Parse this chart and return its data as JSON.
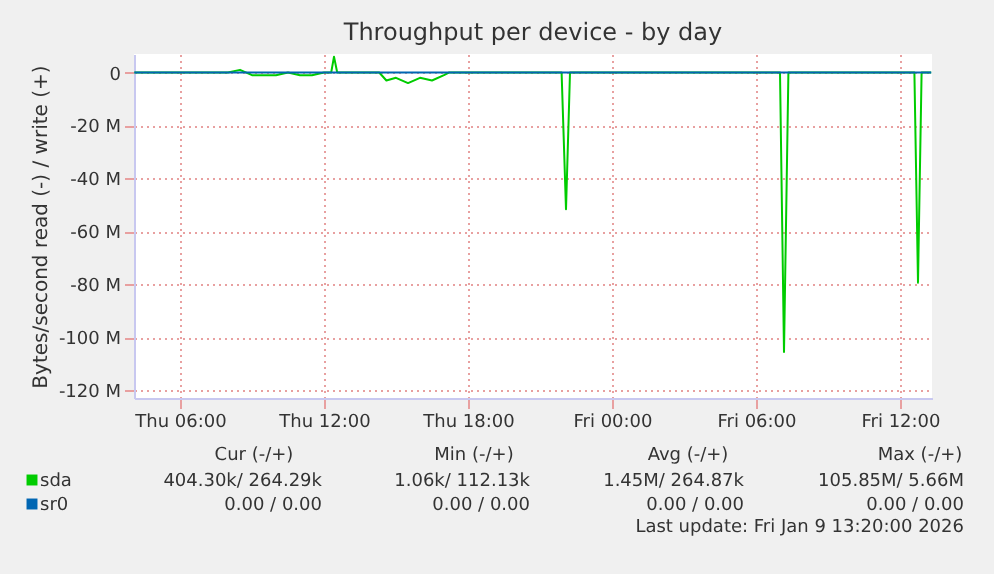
{
  "chart_data": {
    "type": "line",
    "title": "Throughput per device - by day",
    "ylabel": "Bytes/second read (-) / write (+)",
    "x": [
      "2026-01-08T04:06",
      "2026-01-08T06:00",
      "2026-01-08T08:00",
      "2026-01-08T08:30",
      "2026-01-08T09:00",
      "2026-01-08T10:00",
      "2026-01-08T10:30",
      "2026-01-08T11:00",
      "2026-01-08T11:30",
      "2026-01-08T12:00",
      "2026-01-08T12:18",
      "2026-01-08T12:25",
      "2026-01-08T12:33",
      "2026-01-08T13:00",
      "2026-01-08T14:18",
      "2026-01-08T14:36",
      "2026-01-08T15:00",
      "2026-01-08T15:30",
      "2026-01-08T16:00",
      "2026-01-08T16:30",
      "2026-01-08T17:00",
      "2026-01-08T17:12",
      "2026-01-08T20:00",
      "2026-01-08T21:54",
      "2026-01-08T22:05",
      "2026-01-08T22:15",
      "2026-01-09T02:00",
      "2026-01-09T04:00",
      "2026-01-09T07:00",
      "2026-01-09T07:10",
      "2026-01-09T07:21",
      "2026-01-09T10:00",
      "2026-01-09T12:36",
      "2026-01-09T12:45",
      "2026-01-09T12:54",
      "2026-01-09T13:18"
    ],
    "series": [
      {
        "name": "sda",
        "color": "#00cc00",
        "values": [
          0,
          0,
          0,
          1,
          -1,
          -1,
          0,
          -1,
          -1,
          0,
          0,
          6,
          0,
          0,
          0,
          -3,
          -2,
          -4,
          -2,
          -3,
          -1,
          0,
          0,
          0,
          -51.7,
          0,
          0,
          0,
          0,
          -105.6,
          0,
          0,
          0,
          -79.4,
          0,
          0
        ]
      },
      {
        "name": "sr0",
        "color": "#0066b3",
        "values": [
          0,
          0,
          0,
          0,
          0,
          0,
          0,
          0,
          0,
          0,
          0,
          0,
          0,
          0,
          0,
          0,
          0,
          0,
          0,
          0,
          0,
          0,
          0,
          0,
          0,
          0,
          0,
          0,
          0,
          0,
          0,
          0,
          0,
          0,
          0,
          0
        ]
      }
    ],
    "xlim": [
      "2026-01-08T04:05",
      "2026-01-09T13:20"
    ],
    "xticks": [
      {
        "value": "2026-01-08T06:00",
        "label": "Thu 06:00"
      },
      {
        "value": "2026-01-08T12:00",
        "label": "Thu 12:00"
      },
      {
        "value": "2026-01-08T18:00",
        "label": "Thu 18:00"
      },
      {
        "value": "2026-01-09T00:00",
        "label": "Fri 00:00"
      },
      {
        "value": "2026-01-09T06:00",
        "label": "Fri 06:00"
      },
      {
        "value": "2026-01-09T12:00",
        "label": "Fri 12:00"
      }
    ],
    "ylim": [
      -123,
      7
    ],
    "yticks": [
      {
        "value": 0,
        "label": "0"
      },
      {
        "value": -20,
        "label": "-20 M"
      },
      {
        "value": -40,
        "label": "-40 M"
      },
      {
        "value": -60,
        "label": "-60 M"
      },
      {
        "value": -80,
        "label": "-80 M"
      },
      {
        "value": -100,
        "label": "-100 M"
      },
      {
        "value": -120,
        "label": "-120 M"
      }
    ],
    "grid": true,
    "legend": "bottom left",
    "annotations": [
      "Cur (-/+)",
      "Min (-/+)",
      "Avg (-/+)",
      "Max (-/+)",
      "404.30k/   264.29k",
      "1.06k/   112.13k",
      "1.45M/   264.87k",
      "105.85M/      5.66M",
      "0.00 /        0.00",
      "0.00 /        0.00",
      "0.00 /        0.00",
      "0.00 /        0.00",
      "Last update: Fri Jan  9 13:20:00 2026"
    ]
  }
}
